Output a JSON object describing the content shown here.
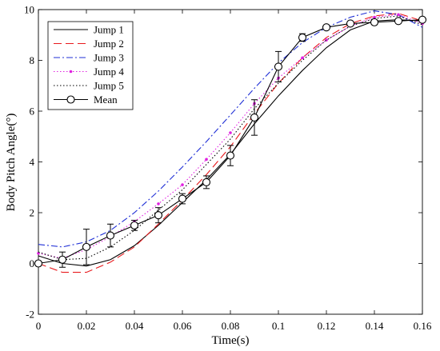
{
  "chart_data": {
    "type": "line",
    "xlabel": "Time(s)",
    "ylabel": "Body Pitch Angle(°)",
    "xlim": [
      0,
      0.16
    ],
    "ylim": [
      -2,
      10
    ],
    "xticks": [
      0,
      0.02,
      0.04,
      0.06,
      0.08,
      0.1,
      0.12,
      0.14,
      0.16
    ],
    "xtick_labels": [
      "0",
      "0.02",
      "0.04",
      "0.06",
      "0.08",
      "0.1",
      "0.12",
      "0.14",
      "0.16"
    ],
    "yticks": [
      -2,
      0,
      2,
      4,
      6,
      8,
      10
    ],
    "ytick_labels": [
      "-2",
      "0",
      "2",
      "4",
      "6",
      "8",
      "10"
    ],
    "grid": false,
    "legend_position": "top-left",
    "series": [
      {
        "name": "Jump 1",
        "color": "#000000",
        "style": "solid",
        "x": [
          0,
          0.01,
          0.02,
          0.03,
          0.04,
          0.05,
          0.06,
          0.07,
          0.08,
          0.09,
          0.1,
          0.11,
          0.12,
          0.13,
          0.14,
          0.15,
          0.16
        ],
        "y": [
          0.3,
          0.0,
          -0.1,
          0.15,
          0.7,
          1.5,
          2.4,
          3.3,
          4.3,
          5.5,
          6.6,
          7.6,
          8.5,
          9.2,
          9.55,
          9.6,
          9.55
        ]
      },
      {
        "name": "Jump 2",
        "color": "#e8191c",
        "style": "dashed",
        "x": [
          0,
          0.01,
          0.02,
          0.03,
          0.04,
          0.05,
          0.06,
          0.07,
          0.08,
          0.09,
          0.1,
          0.11,
          0.12,
          0.13,
          0.14,
          0.15,
          0.16
        ],
        "y": [
          0.0,
          -0.35,
          -0.35,
          0.05,
          0.65,
          1.55,
          2.5,
          3.5,
          4.6,
          5.9,
          7.1,
          8.1,
          8.9,
          9.45,
          9.75,
          9.85,
          9.55
        ]
      },
      {
        "name": "Jump 3",
        "color": "#1f2fd6",
        "style": "dashdot",
        "x": [
          0,
          0.01,
          0.02,
          0.03,
          0.04,
          0.05,
          0.06,
          0.07,
          0.08,
          0.09,
          0.1,
          0.11,
          0.12,
          0.13,
          0.14,
          0.15,
          0.16
        ],
        "y": [
          0.75,
          0.65,
          0.85,
          1.3,
          2.0,
          2.85,
          3.8,
          4.8,
          5.85,
          6.9,
          7.9,
          8.7,
          9.3,
          9.7,
          9.95,
          9.8,
          9.3
        ]
      },
      {
        "name": "Jump 4",
        "color": "#e020e0",
        "style": "dotted-marker",
        "x": [
          0,
          0.01,
          0.02,
          0.03,
          0.04,
          0.05,
          0.06,
          0.07,
          0.08,
          0.09,
          0.1,
          0.11,
          0.12,
          0.13,
          0.14,
          0.15,
          0.16
        ],
        "y": [
          0.4,
          0.2,
          0.55,
          1.05,
          1.65,
          2.35,
          3.1,
          4.1,
          5.15,
          6.3,
          7.3,
          8.1,
          8.8,
          9.35,
          9.7,
          9.8,
          9.45
        ]
      },
      {
        "name": "Jump 5",
        "color": "#000000",
        "style": "dotted",
        "x": [
          0,
          0.01,
          0.02,
          0.03,
          0.04,
          0.05,
          0.06,
          0.07,
          0.08,
          0.09,
          0.1,
          0.11,
          0.12,
          0.13,
          0.14,
          0.15,
          0.16
        ],
        "y": [
          0.45,
          0.15,
          0.2,
          0.65,
          1.3,
          2.1,
          2.9,
          3.9,
          4.9,
          6.1,
          7.1,
          8.0,
          8.8,
          9.35,
          9.65,
          9.75,
          9.4
        ]
      },
      {
        "name": "Mean",
        "color": "#000000",
        "style": "solid-circle",
        "x": [
          0,
          0.01,
          0.02,
          0.03,
          0.04,
          0.05,
          0.06,
          0.07,
          0.08,
          0.09,
          0.1,
          0.11,
          0.12,
          0.13,
          0.14,
          0.15,
          0.16
        ],
        "y": [
          0.0,
          0.15,
          0.65,
          1.1,
          1.5,
          1.9,
          2.55,
          3.2,
          4.25,
          5.75,
          7.75,
          8.9,
          9.3,
          9.45,
          9.5,
          9.55,
          9.6
        ],
        "error": [
          0,
          0.3,
          0.7,
          0.45,
          0.2,
          0.3,
          0.2,
          0.25,
          0.4,
          0.7,
          0.6,
          0.15,
          0,
          0,
          0,
          0,
          0
        ]
      }
    ]
  }
}
